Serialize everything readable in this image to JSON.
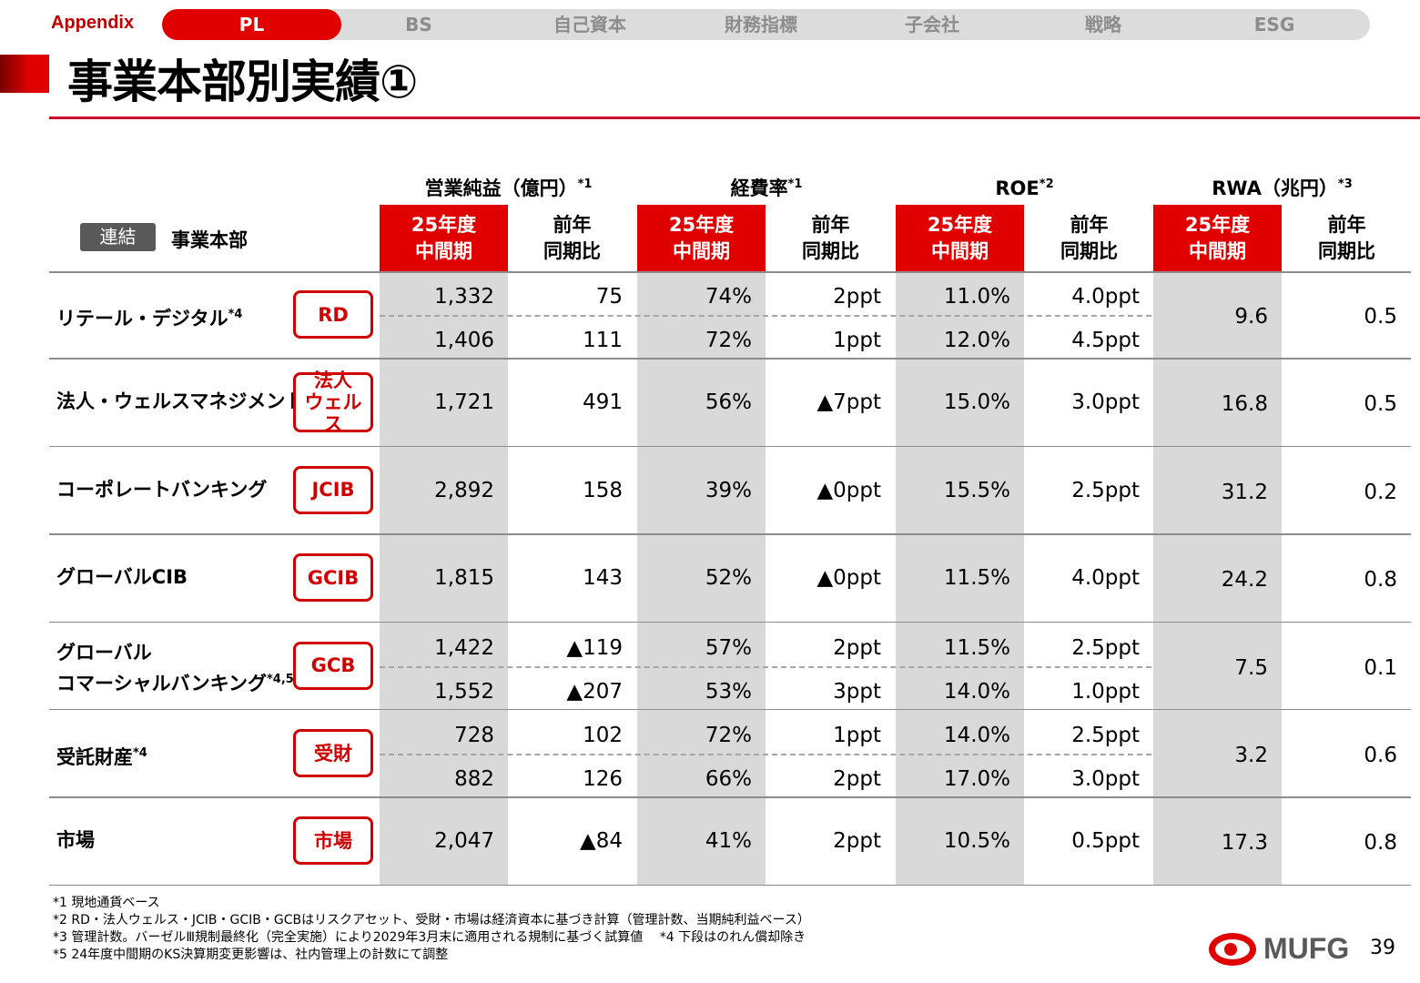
{
  "nav": {
    "section": "Appendix",
    "tabs": [
      "PL",
      "BS",
      "自己資本",
      "財務指標",
      "子会社",
      "戦略",
      "ESG"
    ],
    "active": "PL"
  },
  "title": "事業本部別実績①",
  "table": {
    "group_headers": [
      {
        "label": "営業純益（億円）",
        "note": "*1"
      },
      {
        "label": "経費率",
        "note": "*1"
      },
      {
        "label": "ROE",
        "note": "*2"
      },
      {
        "label": "RWA（兆円）",
        "note": "*3"
      }
    ],
    "sub_headers": [
      "25年度\n中間期",
      "前年\n同期比"
    ],
    "scope_badge": "連結",
    "row_header": "事業本部",
    "rows": [
      {
        "name": "リテール・デジタル",
        "note": "*4",
        "badge": "RD",
        "lines": [
          [
            "1,332",
            "75",
            "74%",
            "2ppt",
            "11.0%",
            "4.0ppt"
          ],
          [
            "1,406",
            "111",
            "72%",
            "1ppt",
            "12.0%",
            "4.5ppt"
          ]
        ],
        "rwa": [
          "9.6",
          "0.5"
        ]
      },
      {
        "name": "法人・ウェルスマネジメント",
        "note": "",
        "badge": "法人\nウェルス",
        "lines": [
          [
            "1,721",
            "491",
            "56%",
            "▲7ppt",
            "15.0%",
            "3.0ppt"
          ]
        ],
        "rwa": [
          "16.8",
          "0.5"
        ]
      },
      {
        "name": "コーポレートバンキング",
        "note": "",
        "badge": "JCIB",
        "lines": [
          [
            "2,892",
            "158",
            "39%",
            "▲0ppt",
            "15.5%",
            "2.5ppt"
          ]
        ],
        "rwa": [
          "31.2",
          "0.2"
        ]
      },
      {
        "name": "グローバルCIB",
        "note": "",
        "badge": "GCIB",
        "lines": [
          [
            "1,815",
            "143",
            "52%",
            "▲0ppt",
            "11.5%",
            "4.0ppt"
          ]
        ],
        "rwa": [
          "24.2",
          "0.8"
        ]
      },
      {
        "name": "グローバル\nコマーシャルバンキング",
        "note": "*4,5",
        "badge": "GCB",
        "lines": [
          [
            "1,422",
            "▲119",
            "57%",
            "2ppt",
            "11.5%",
            "2.5ppt"
          ],
          [
            "1,552",
            "▲207",
            "53%",
            "3ppt",
            "14.0%",
            "1.0ppt"
          ]
        ],
        "rwa": [
          "7.5",
          "0.1"
        ]
      },
      {
        "name": "受託財産",
        "note": "*4",
        "badge": "受財",
        "lines": [
          [
            "728",
            "102",
            "72%",
            "1ppt",
            "14.0%",
            "2.5ppt"
          ],
          [
            "882",
            "126",
            "66%",
            "2ppt",
            "17.0%",
            "3.0ppt"
          ]
        ],
        "rwa": [
          "3.2",
          "0.6"
        ]
      },
      {
        "name": "市場",
        "note": "",
        "badge": "市場",
        "lines": [
          [
            "2,047",
            "▲84",
            "41%",
            "2ppt",
            "10.5%",
            "0.5ppt"
          ]
        ],
        "rwa": [
          "17.3",
          "0.8"
        ]
      }
    ]
  },
  "footnotes": [
    "*1  現地通貨ベース",
    "*2  RD・法人ウェルス・JCIB・GCIB・GCBはリスクアセット、受財・市場は経済資本に基づき計算（管理計数、当期純利益ベース）",
    "*3  管理計数。バーゼルⅢ規制最終化（完全実施）により2029年3月末に適用される規制に基づく試算値　 *4 下段はのれん償却除き",
    "*5  24年度中間期のKS決算期変更影響は、社内管理上の計数にて調整"
  ],
  "logo": "MUFG",
  "page_number": "39",
  "colors": {
    "accent": "#e00000",
    "shade": "#d9d9d9"
  }
}
